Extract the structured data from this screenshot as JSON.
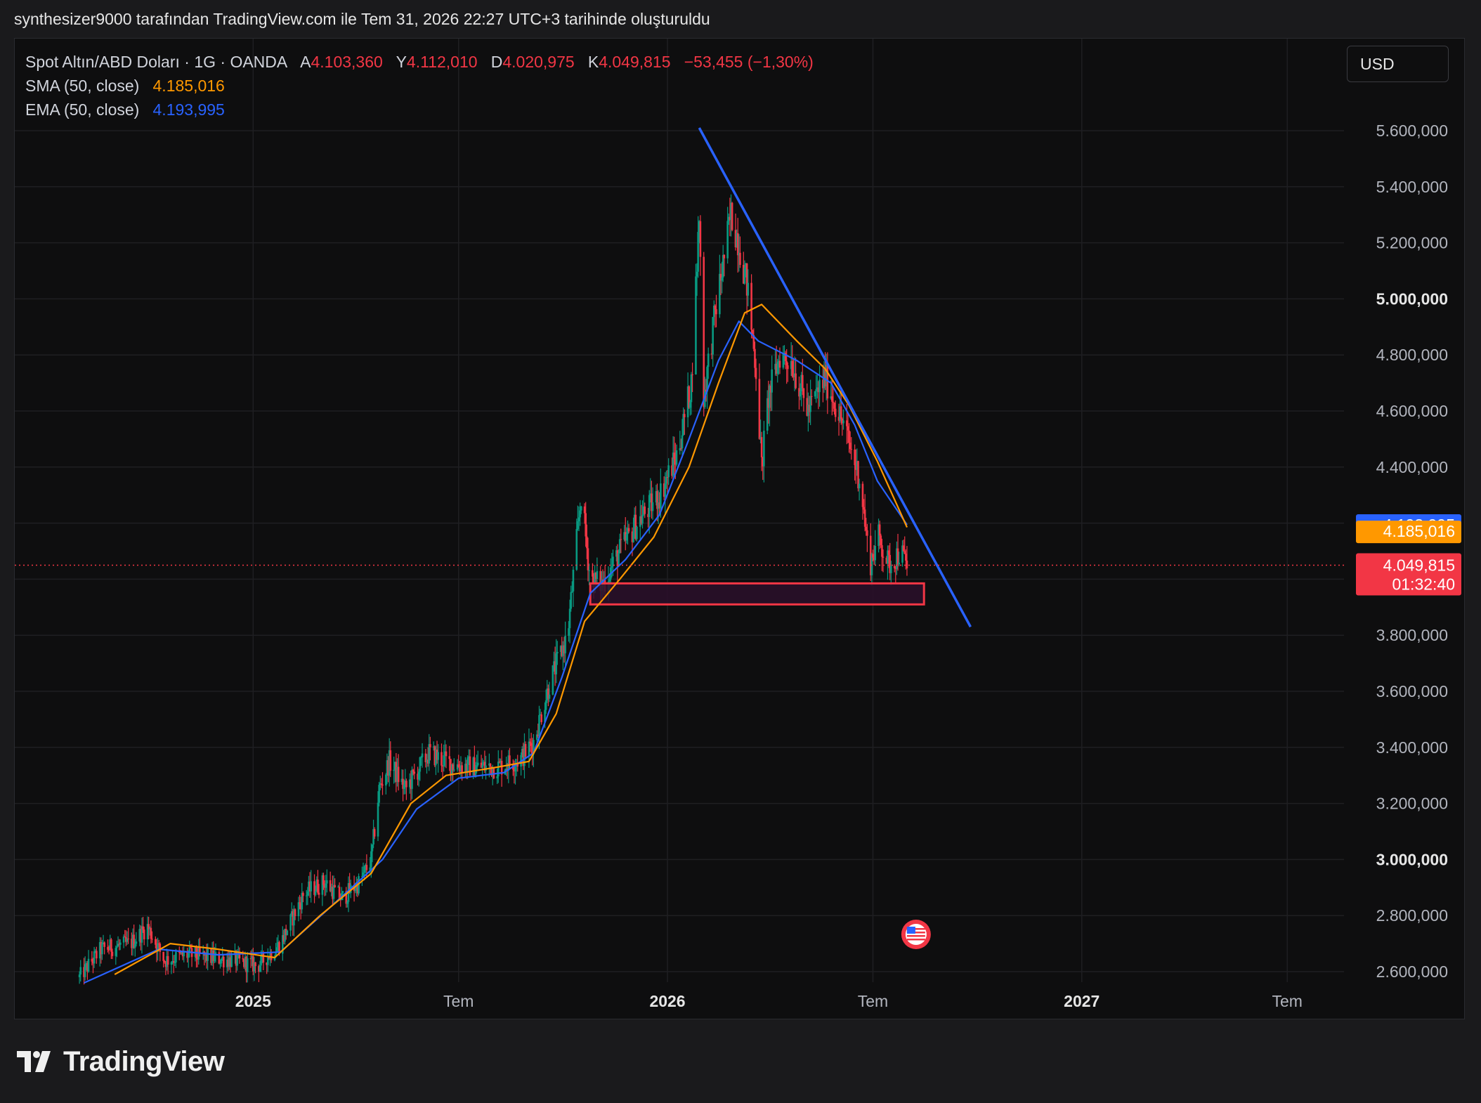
{
  "caption": "synthesizer9000 tarafından TradingView.com ile Tem 31, 2026 22:27 UTC+3 tarihinde oluşturuldu",
  "brand": "TradingView",
  "currency_button": "USD",
  "legend": {
    "symbol": "Spot Altın/ABD Doları · 1G · OANDA",
    "o_label": "A",
    "o_value": "4.103,360",
    "h_label": "Y",
    "h_value": "4.112,010",
    "l_label": "D",
    "l_value": "4.020,975",
    "c_label": "K",
    "c_value": "4.049,815",
    "change": "−53,455 (−1,30%)",
    "sma_label": "SMA (50, close)",
    "sma_value": "4.185,016",
    "ema_label": "EMA (50, close)",
    "ema_value": "4.193,995"
  },
  "colors": {
    "up": "#089981",
    "down": "#f23645",
    "sma": "#ff9800",
    "ema": "#2962ff",
    "trendline": "#2962ff",
    "zone_fill": "#2a0f2a",
    "zone_border": "#f23645",
    "last_price": "#f23645",
    "grid": "#1f1f22",
    "axis_text": "#b2b5be"
  },
  "chart_data": {
    "type": "candlestick",
    "symbol": "Spot Altın/ABD Doları",
    "interval": "1G",
    "ylim": [
      2560,
      5700
    ],
    "y_ticks": [
      {
        "value": 2600,
        "label": "2.600,000"
      },
      {
        "value": 2800,
        "label": "2.800,000"
      },
      {
        "value": 3000,
        "label": "3.000,000",
        "bold": true
      },
      {
        "value": 3200,
        "label": "3.200,000"
      },
      {
        "value": 3400,
        "label": "3.400,000"
      },
      {
        "value": 3600,
        "label": "3.600,000"
      },
      {
        "value": 3800,
        "label": "3.800,000"
      },
      {
        "value": 4000,
        "label": ""
      },
      {
        "value": 4200,
        "label": ""
      },
      {
        "value": 4400,
        "label": "4.400,000"
      },
      {
        "value": 4600,
        "label": "4.600,000"
      },
      {
        "value": 4800,
        "label": "4.800,000"
      },
      {
        "value": 5000,
        "label": "5.000,000",
        "bold": true
      },
      {
        "value": 5200,
        "label": "5.200,000"
      },
      {
        "value": 5400,
        "label": "5.400,000"
      },
      {
        "value": 5600,
        "label": "5.600,000"
      }
    ],
    "x_ticks": [
      {
        "date": "2025-01-01",
        "label": "2025",
        "bold": true
      },
      {
        "date": "2025-07-01",
        "label": "Tem"
      },
      {
        "date": "2026-01-01",
        "label": "2026",
        "bold": true
      },
      {
        "date": "2026-07-01",
        "label": "Tem"
      },
      {
        "date": "2027-01-01",
        "label": "2027",
        "bold": true
      },
      {
        "date": "2027-07-01",
        "label": "Tem"
      }
    ],
    "xlim": [
      "2024-06-05",
      "2027-08-20"
    ],
    "price_path": [
      [
        "2024-08-01",
        2580
      ],
      [
        "2024-08-20",
        2680
      ],
      [
        "2024-09-15",
        2700
      ],
      [
        "2024-09-30",
        2760
      ],
      [
        "2024-10-15",
        2640
      ],
      [
        "2024-11-05",
        2660
      ],
      [
        "2024-11-25",
        2650
      ],
      [
        "2024-12-15",
        2640
      ],
      [
        "2025-01-05",
        2620
      ],
      [
        "2025-01-25",
        2700
      ],
      [
        "2025-02-15",
        2880
      ],
      [
        "2025-03-05",
        2920
      ],
      [
        "2025-03-20",
        2860
      ],
      [
        "2025-04-05",
        2920
      ],
      [
        "2025-04-15",
        3000
      ],
      [
        "2025-04-22",
        3250
      ],
      [
        "2025-05-01",
        3350
      ],
      [
        "2025-05-15",
        3250
      ],
      [
        "2025-06-05",
        3380
      ],
      [
        "2025-06-25",
        3340
      ],
      [
        "2025-07-15",
        3330
      ],
      [
        "2025-08-05",
        3330
      ],
      [
        "2025-08-25",
        3360
      ],
      [
        "2025-09-05",
        3420
      ],
      [
        "2025-09-20",
        3640
      ],
      [
        "2025-10-05",
        3800
      ],
      [
        "2025-10-17",
        4300
      ],
      [
        "2025-10-25",
        4000
      ],
      [
        "2025-11-05",
        3980
      ],
      [
        "2025-11-20",
        4100
      ],
      [
        "2025-12-05",
        4200
      ],
      [
        "2025-12-25",
        4300
      ],
      [
        "2026-01-10",
        4450
      ],
      [
        "2026-01-22",
        4700
      ],
      [
        "2026-01-29",
        5300
      ],
      [
        "2026-02-02",
        4650
      ],
      [
        "2026-02-12",
        4950
      ],
      [
        "2026-02-26",
        5300
      ],
      [
        "2026-03-05",
        5200
      ],
      [
        "2026-03-12",
        5050
      ],
      [
        "2026-03-20",
        4750
      ],
      [
        "2026-03-25",
        4400
      ],
      [
        "2026-03-31",
        4650
      ],
      [
        "2026-04-10",
        4800
      ],
      [
        "2026-04-20",
        4780
      ],
      [
        "2026-05-05",
        4600
      ],
      [
        "2026-05-20",
        4720
      ],
      [
        "2026-06-05",
        4550
      ],
      [
        "2026-06-20",
        4350
      ],
      [
        "2026-06-28",
        4050
      ],
      [
        "2026-07-06",
        4150
      ],
      [
        "2026-07-15",
        4050
      ],
      [
        "2026-07-25",
        4100
      ],
      [
        "2026-07-31",
        4049.815
      ]
    ],
    "sma_50": [
      [
        "2024-09-01",
        2590
      ],
      [
        "2024-10-20",
        2700
      ],
      [
        "2024-12-01",
        2680
      ],
      [
        "2025-01-20",
        2650
      ],
      [
        "2025-03-01",
        2800
      ],
      [
        "2025-04-15",
        2950
      ],
      [
        "2025-05-20",
        3200
      ],
      [
        "2025-06-20",
        3300
      ],
      [
        "2025-08-05",
        3330
      ],
      [
        "2025-09-01",
        3350
      ],
      [
        "2025-09-25",
        3520
      ],
      [
        "2025-10-20",
        3850
      ],
      [
        "2025-11-20",
        4000
      ],
      [
        "2025-12-20",
        4150
      ],
      [
        "2026-01-20",
        4400
      ],
      [
        "2026-02-15",
        4700
      ],
      [
        "2026-03-10",
        4950
      ],
      [
        "2026-03-25",
        4980
      ],
      [
        "2026-04-25",
        4850
      ],
      [
        "2026-05-20",
        4750
      ],
      [
        "2026-06-10",
        4620
      ],
      [
        "2026-07-05",
        4420
      ],
      [
        "2026-07-31",
        4185.016
      ]
    ],
    "ema_50": [
      [
        "2024-08-05",
        2560
      ],
      [
        "2024-10-10",
        2680
      ],
      [
        "2024-12-01",
        2660
      ],
      [
        "2025-01-25",
        2670
      ],
      [
        "2025-03-10",
        2830
      ],
      [
        "2025-04-25",
        3000
      ],
      [
        "2025-05-25",
        3180
      ],
      [
        "2025-07-01",
        3290
      ],
      [
        "2025-08-10",
        3310
      ],
      [
        "2025-09-05",
        3380
      ],
      [
        "2025-09-30",
        3650
      ],
      [
        "2025-10-25",
        3950
      ],
      [
        "2025-11-25",
        4070
      ],
      [
        "2025-12-25",
        4230
      ],
      [
        "2026-01-20",
        4500
      ],
      [
        "2026-02-15",
        4780
      ],
      [
        "2026-03-05",
        4920
      ],
      [
        "2026-03-22",
        4850
      ],
      [
        "2026-04-25",
        4780
      ],
      [
        "2026-05-25",
        4700
      ],
      [
        "2026-06-15",
        4550
      ],
      [
        "2026-07-05",
        4350
      ],
      [
        "2026-07-31",
        4193.995
      ]
    ],
    "trendline": [
      [
        "2026-01-29",
        5610
      ],
      [
        "2026-09-25",
        3830
      ]
    ],
    "support_zone": {
      "from": "2025-10-25",
      "to": "2026-08-15",
      "low": 3910,
      "high": 3985
    },
    "last_price": {
      "value": 4049.815,
      "label": "4.049,815",
      "countdown": "01:32:40"
    },
    "sma_badge": {
      "value": 4185.016,
      "label": "4.185,016"
    },
    "ema_badge": {
      "value": 4193.995,
      "label": "4.193,995"
    },
    "event_marker": {
      "date": "2026-08-08",
      "value": 2635,
      "icon": "us-flag-icon"
    }
  }
}
